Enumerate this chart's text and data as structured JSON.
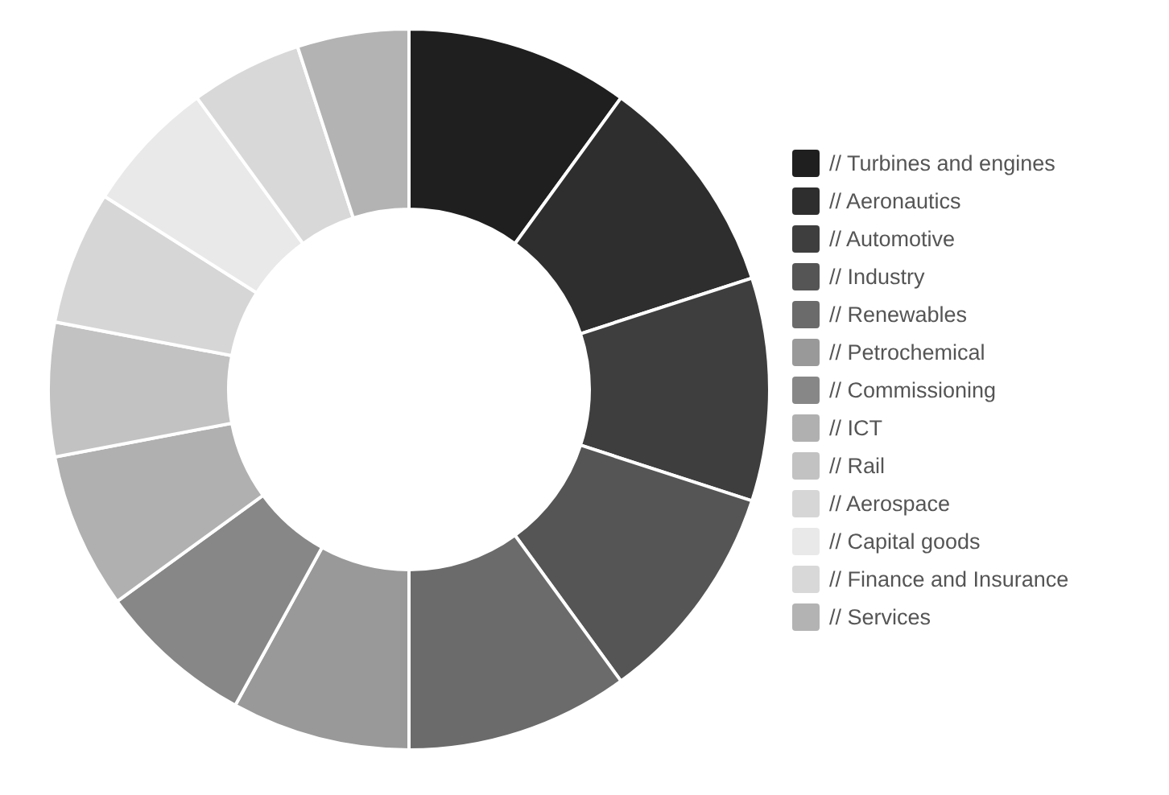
{
  "chart_data": {
    "type": "donut",
    "legend": "right",
    "categories": [
      "// Turbines and engines",
      "// Aeronautics",
      "// Automotive",
      "// Industry",
      "// Renewables",
      "// Petrochemical",
      "// Commissioning",
      "// ICT",
      "// Rail",
      "// Aerospace",
      "// Capital goods",
      "// Finance and Insurance",
      "// Services"
    ],
    "values": [
      10,
      10,
      10,
      10,
      10,
      8,
      7,
      7,
      6,
      6,
      6,
      5,
      5
    ],
    "colors": [
      "#1f1f1f",
      "#2e2e2e",
      "#3e3e3e",
      "#555555",
      "#6b6b6b",
      "#999999",
      "#878787",
      "#b0b0b0",
      "#c2c2c2",
      "#d6d6d6",
      "#e9e9e9",
      "#d8d8d8",
      "#b3b3b3"
    ]
  }
}
